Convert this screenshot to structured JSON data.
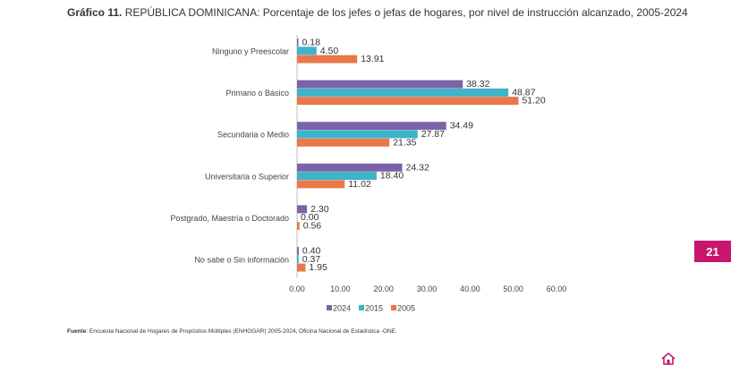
{
  "title": {
    "prefix": "Gráfico 11.",
    "text": "REPÚBLICA DOMINICANA: Porcentaje de los jefes o jefas de hogares, por nivel de instrucción alcanzado, 2005-2024"
  },
  "source": {
    "prefix": "Fuente",
    "text": ": Encuesta Nacional de Hogares de Propósitos Múltiples (ENHOGAR) 2005-2024, Oficina Nacional de Estadística -ONE."
  },
  "page_number": "21",
  "colors": {
    "s2024": "#7b63a8",
    "s2015": "#3fb3c8",
    "s2005": "#e8784a",
    "accent": "#c8156e"
  },
  "chart_data": {
    "type": "bar",
    "orientation": "horizontal",
    "categories": [
      "Ninguno y Preescolar",
      "Primario o Básico",
      "Secundaria o Medio",
      "Universitaria o Superior",
      "Postgrado, Maestría o Doctorado",
      "No sabe o Sin información"
    ],
    "series": [
      {
        "name": "2024",
        "values": [
          "0.18",
          "38.32",
          "34.49",
          "24.32",
          "2.30",
          "0.40"
        ]
      },
      {
        "name": "2015",
        "values": [
          "4.50",
          "48.87",
          "27.87",
          "18.40",
          "0.00",
          "0.37"
        ]
      },
      {
        "name": "2005",
        "values": [
          "13.91",
          "51.20",
          "21.35",
          "11.02",
          "0.56",
          "1.95"
        ]
      }
    ],
    "xlim": [
      0,
      60
    ],
    "xticks": [
      "0.00",
      "10.00",
      "20.00",
      "30.00",
      "40.00",
      "50.00",
      "60.00"
    ],
    "legend_position": "bottom",
    "grid": false
  }
}
